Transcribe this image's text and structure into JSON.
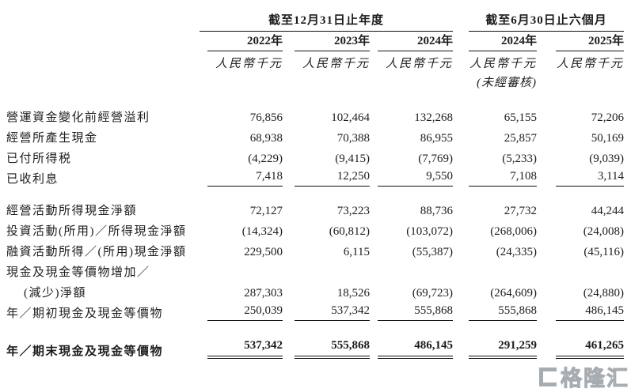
{
  "table": {
    "groups": [
      {
        "title": "截至12月31日止年度",
        "columns": [
          "2022年",
          "2023年",
          "2024年"
        ]
      },
      {
        "title": "截至6月30日止六個月",
        "columns": [
          "2024年",
          "2025年"
        ]
      }
    ],
    "unit_label": "人民幣千元",
    "unaudited_note": "(未經審核)",
    "rows": [
      {
        "label": "營運資金變化前經營溢利",
        "values": [
          "76,856",
          "102,464",
          "132,268",
          "65,155",
          "72,206"
        ]
      },
      {
        "label": "經營所產生現金",
        "values": [
          "68,938",
          "70,388",
          "86,955",
          "25,857",
          "50,169"
        ]
      },
      {
        "label": "已付所得税",
        "values": [
          "(4,229)",
          "(9,415)",
          "(7,769)",
          "(5,233)",
          "(9,039)"
        ]
      },
      {
        "label": "已收利息",
        "values": [
          "7,418",
          "12,250",
          "9,550",
          "7,108",
          "3,114"
        ]
      },
      {
        "label": "經營活動所得現金淨額",
        "values": [
          "72,127",
          "73,223",
          "88,736",
          "27,732",
          "44,244"
        ]
      },
      {
        "label": "投資活動(所用)／所得現金淨額",
        "values": [
          "(14,324)",
          "(60,812)",
          "(103,072)",
          "(268,006)",
          "(24,008)"
        ]
      },
      {
        "label": "融資活動所得／(所用)現金淨額",
        "values": [
          "229,500",
          "6,115",
          "(55,387)",
          "(24,335)",
          "(45,116)"
        ]
      },
      {
        "label": "現金及現金等價物增加／",
        "values": [
          "",
          "",
          "",
          "",
          ""
        ]
      },
      {
        "label": "(減少)淨額",
        "values": [
          "287,303",
          "18,526",
          "(69,723)",
          "(264,609)",
          "(24,880)"
        ]
      },
      {
        "label": "年／期初現金及現金等價物",
        "values": [
          "250,039",
          "537,342",
          "555,868",
          "555,868",
          "486,145"
        ]
      },
      {
        "label": "年／期末現金及現金等價物",
        "values": [
          "537,342",
          "555,868",
          "486,145",
          "291,259",
          "461,265"
        ]
      }
    ]
  },
  "watermark": {
    "text": "格隆汇"
  }
}
